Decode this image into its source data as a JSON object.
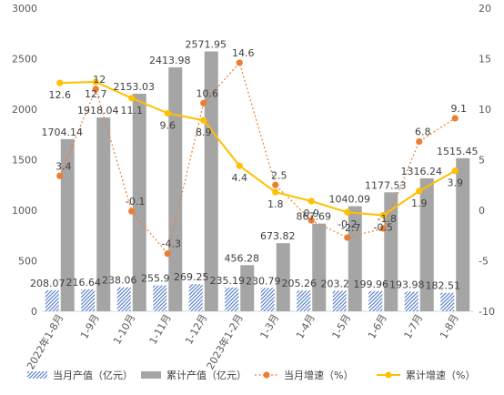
{
  "chart_data": {
    "type": "bar",
    "categories": [
      "2022年1-8月",
      "1-9月",
      "1-10月",
      "1-11月",
      "1-12月",
      "2023年1-2月",
      "1-3月",
      "1-4月",
      "1-5月",
      "1-6月",
      "1-7月",
      "1-8月"
    ],
    "left_axis": {
      "min": 0,
      "max": 3000,
      "step": 500,
      "ticks": [
        "0",
        "500",
        "1000",
        "1500",
        "2000",
        "2500",
        "3000"
      ]
    },
    "right_axis": {
      "min": -10,
      "max": 20,
      "step": 5,
      "ticks": [
        "-10",
        "-5",
        "0",
        "5",
        "10",
        "15",
        "20"
      ]
    },
    "series": [
      {
        "name": "当月产值（亿元）",
        "type": "bar",
        "axis": "left",
        "color": "#4472c4",
        "pattern": "diagonal-hatch",
        "values": [
          208.07,
          216.64,
          238.06,
          255.9,
          269.25,
          235.19,
          230.79,
          205.26,
          203.2,
          199.96,
          193.98,
          182.51
        ],
        "labels": [
          "208.07",
          "216.64",
          "238.06",
          "255.9",
          "269.25",
          "235.19",
          "230.79",
          "205.26",
          "203.2",
          "199.96",
          "193.98",
          "182.51"
        ]
      },
      {
        "name": "累计产值（亿元）",
        "type": "bar",
        "axis": "left",
        "color": "#a5a5a5",
        "values": [
          1704.14,
          1918.04,
          2153.03,
          2413.98,
          2571.95,
          456.28,
          673.82,
          867.69,
          1040.09,
          1177.53,
          1316.24,
          1515.45
        ],
        "labels": [
          "1704.14",
          "1918.04",
          "2153.03",
          "2413.98",
          "2571.95",
          "456.28",
          "673.82",
          "867.69",
          "1040.09",
          "1177.53",
          "1316.24",
          "1515.45"
        ]
      },
      {
        "name": "当月增速（%）",
        "type": "line",
        "axis": "right",
        "color": "#ed7d31",
        "dashed": true,
        "values": [
          3.4,
          12,
          -0.1,
          -4.3,
          10.6,
          14.6,
          2.5,
          -1,
          -2.7,
          -1.8,
          6.8,
          9.1
        ],
        "labels": [
          "3.4",
          "12",
          "-0.1",
          "-4.3",
          "10.6",
          "14.6",
          "2.5",
          "",
          "-2.7",
          "-1.8",
          "6.8",
          "9.1"
        ]
      },
      {
        "name": "累计增速（%）",
        "type": "line",
        "axis": "right",
        "color": "#ffc000",
        "dashed": false,
        "values": [
          12.6,
          12.7,
          11.1,
          9.6,
          8.9,
          4.4,
          1.8,
          0.9,
          -0.2,
          -0.5,
          1.9,
          3.9
        ],
        "labels": [
          "12.6",
          "12.7",
          "11.1",
          "9.6",
          "8.9",
          "4.4",
          "1.8",
          "0.9",
          "-0.2",
          "-0.5",
          "1.9",
          "3.9"
        ]
      }
    ],
    "legend_position": "bottom",
    "grid": false
  }
}
